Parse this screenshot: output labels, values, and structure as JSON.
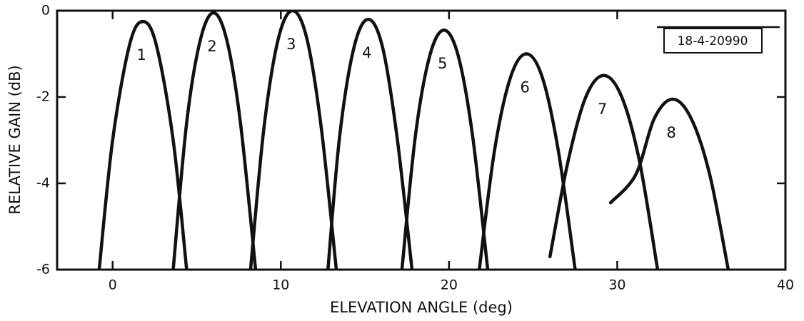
{
  "chart_data": {
    "type": "line",
    "xlabel": "ELEVATION ANGLE (deg)",
    "ylabel": "RELATIVE GAIN (dB)",
    "annotation": "18-4-20990",
    "xlim": [
      -3.3,
      40
    ],
    "ylim": [
      -6,
      0
    ],
    "xticks": [
      0,
      10,
      20,
      30,
      40
    ],
    "yticks": [
      0,
      -2,
      -4,
      -6
    ],
    "grid": false,
    "series": [
      {
        "name": "1",
        "color": "#111111",
        "x": [
          -0.8,
          0,
          1.0,
          1.8,
          2.6,
          3.6,
          4.4
        ],
        "values": [
          -6,
          -3.0,
          -0.8,
          -0.25,
          -0.8,
          -3.0,
          -6
        ]
      },
      {
        "name": "2",
        "color": "#111111",
        "x": [
          3.6,
          4.4,
          5.2,
          6.0,
          6.8,
          7.6,
          8.5
        ],
        "values": [
          -6,
          -2.6,
          -0.7,
          -0.05,
          -0.7,
          -2.6,
          -6
        ]
      },
      {
        "name": "3",
        "color": "#111111",
        "x": [
          8.2,
          9.0,
          9.85,
          10.7,
          11.55,
          12.4,
          13.3
        ],
        "values": [
          -6,
          -2.7,
          -0.65,
          0,
          -0.65,
          -2.7,
          -6
        ]
      },
      {
        "name": "4",
        "color": "#111111",
        "x": [
          12.8,
          13.5,
          14.35,
          15.2,
          16.05,
          16.9,
          17.8
        ],
        "values": [
          -6,
          -2.9,
          -0.85,
          -0.2,
          -0.85,
          -2.9,
          -6
        ]
      },
      {
        "name": "5",
        "color": "#111111",
        "x": [
          17.2,
          18.0,
          18.85,
          19.7,
          20.55,
          21.4,
          22.3
        ],
        "values": [
          -6,
          -2.9,
          -1.05,
          -0.45,
          -1.05,
          -2.9,
          -6
        ]
      },
      {
        "name": "6",
        "color": "#111111",
        "x": [
          21.8,
          22.7,
          23.65,
          24.6,
          25.55,
          26.5,
          27.5
        ],
        "values": [
          -6,
          -3.25,
          -1.55,
          -1.0,
          -1.55,
          -3.25,
          -6
        ]
      },
      {
        "name": "7",
        "color": "#111111",
        "x": [
          26.0,
          27.07,
          28.13,
          29.2,
          30.27,
          31.33,
          32.4
        ],
        "values": [
          -5.7,
          -3.5,
          -2.0,
          -1.5,
          -2.0,
          -3.5,
          -6
        ]
      },
      {
        "name": "8",
        "color": "#111111",
        "x": [
          29.6,
          31.1,
          32.2,
          33.3,
          34.4,
          35.5,
          36.6
        ],
        "values": [
          -4.45,
          -3.8,
          -2.5,
          -2.05,
          -2.5,
          -3.8,
          -6
        ]
      }
    ]
  }
}
